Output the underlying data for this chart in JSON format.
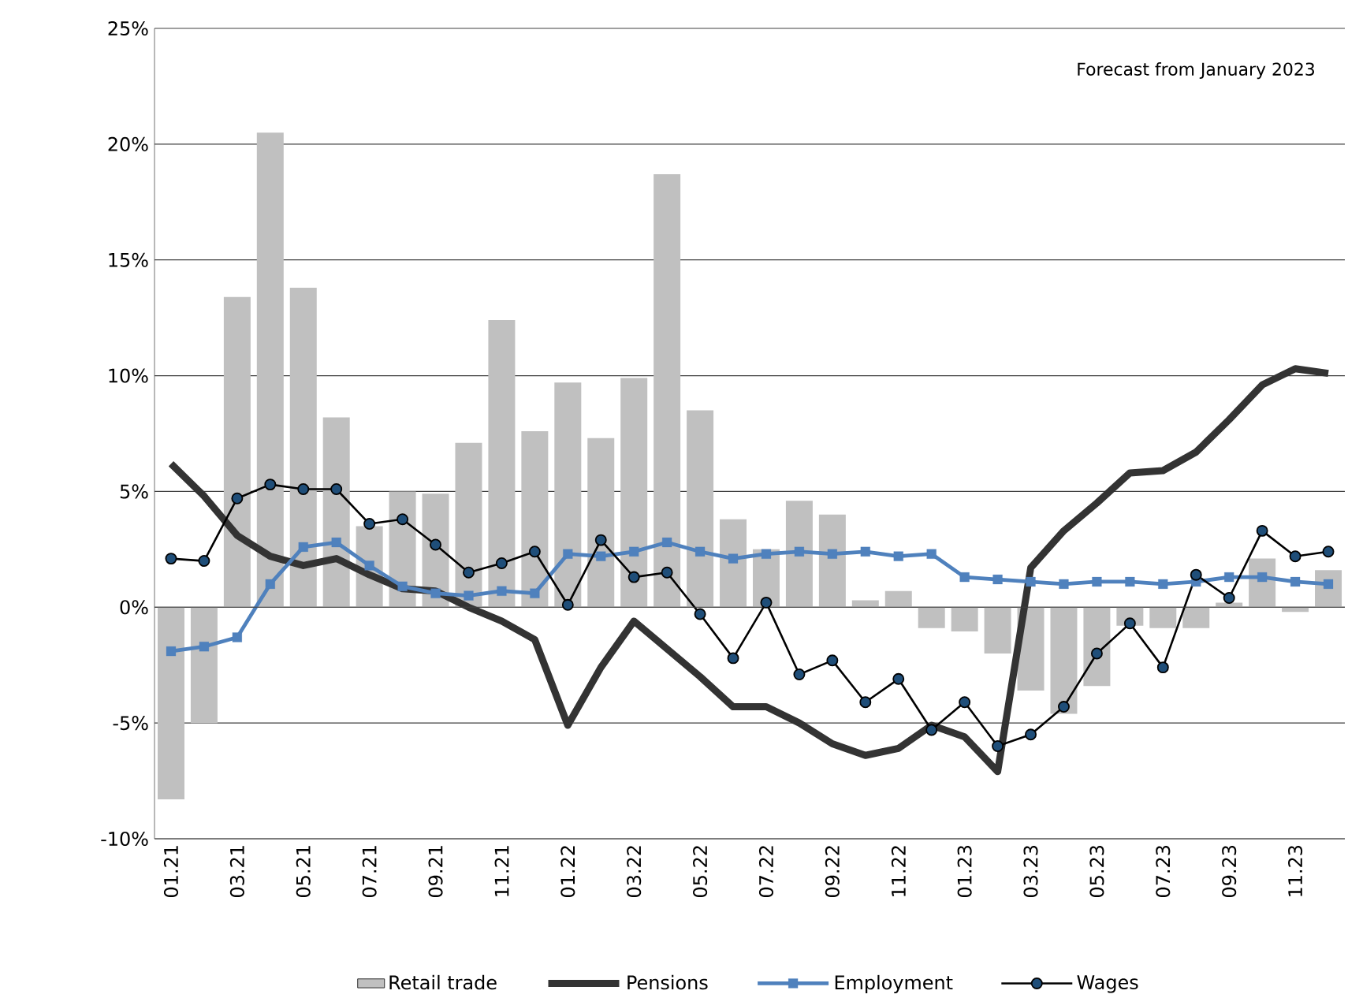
{
  "chart_data": {
    "type": "bar",
    "categories": [
      "01.21",
      null,
      "03.21",
      null,
      "05.21",
      null,
      "07.21",
      null,
      "09.21",
      null,
      "11.21",
      null,
      "01.22",
      null,
      "03.22",
      null,
      "05.22",
      null,
      "07.22",
      null,
      "09.22",
      null,
      "11.22",
      null,
      "01.23",
      null,
      "03.23",
      null,
      "05.23",
      null,
      "07.23",
      null,
      "09.23",
      null,
      "11.23",
      null
    ],
    "series": [
      {
        "name": "Retail trade",
        "color": "#c0c0c0",
        "values": [
          -8.3,
          -5.0,
          13.4,
          20.5,
          13.8,
          8.2,
          3.5,
          5.0,
          4.9,
          7.1,
          12.4,
          7.6,
          9.7,
          7.3,
          9.9,
          18.7,
          8.5,
          3.8,
          2.5,
          4.6,
          4.0,
          0.3,
          0.7,
          -0.9,
          -1.05,
          -2.0,
          -3.6,
          -4.6,
          -3.4,
          -0.8,
          -0.9,
          -0.9,
          0.2,
          2.1,
          -0.2,
          1.6
        ]
      },
      {
        "name": "Pensions",
        "type": "line",
        "color": "#333333",
        "marker": "none",
        "values": [
          6.2,
          4.8,
          3.1,
          2.2,
          1.8,
          2.1,
          1.4,
          0.8,
          0.7,
          0.0,
          -0.6,
          -1.4,
          -5.1,
          -2.6,
          -0.6,
          -1.8,
          -3.0,
          -4.3,
          -4.3,
          -5.0,
          -5.9,
          -6.4,
          -6.1,
          -5.1,
          -5.6,
          -7.1,
          1.7,
          3.3,
          4.5,
          5.8,
          5.9,
          6.7,
          8.1,
          9.6,
          10.3,
          10.1
        ]
      },
      {
        "name": "Employment",
        "type": "line",
        "color": "#4f81bd",
        "marker": "square",
        "values": [
          -1.9,
          -1.7,
          -1.3,
          1.0,
          2.6,
          2.8,
          1.8,
          0.9,
          0.6,
          0.5,
          0.7,
          0.6,
          2.3,
          2.2,
          2.4,
          2.8,
          2.4,
          2.1,
          2.3,
          2.4,
          2.3,
          2.4,
          2.2,
          2.3,
          1.3,
          1.2,
          1.1,
          1.0,
          1.1,
          1.1,
          1.0,
          1.1,
          1.3,
          1.3,
          1.1,
          1.0
        ]
      },
      {
        "name": "Wages",
        "type": "line",
        "color": "#000000",
        "marker": "circle",
        "values": [
          2.1,
          2.0,
          4.7,
          5.3,
          5.1,
          5.1,
          3.6,
          3.8,
          2.7,
          1.5,
          1.9,
          2.4,
          0.1,
          2.9,
          1.3,
          1.5,
          -0.3,
          -2.2,
          0.2,
          -2.9,
          -2.3,
          -4.1,
          -3.1,
          -5.3,
          -4.1,
          -6.0,
          -5.5,
          -4.3,
          -2.0,
          -0.7,
          -2.6,
          1.4,
          0.4,
          3.3,
          2.2,
          2.4
        ]
      }
    ],
    "ylim": [
      -10,
      25
    ],
    "yticks": [
      {
        "value": -10,
        "label": "-10%"
      },
      {
        "value": -5,
        "label": "-5%"
      },
      {
        "value": 0,
        "label": "0%"
      },
      {
        "value": 5,
        "label": "5%"
      },
      {
        "value": 10,
        "label": "10%"
      },
      {
        "value": 15,
        "label": "15%"
      },
      {
        "value": 20,
        "label": "20%"
      },
      {
        "value": 25,
        "label": "25%"
      }
    ],
    "annotations": [
      "Forecast from January 2023"
    ],
    "grid": "y",
    "legend": "bottom"
  }
}
